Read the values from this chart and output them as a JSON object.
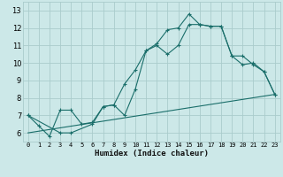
{
  "xlabel": "Humidex (Indice chaleur)",
  "bg_color": "#cce8e8",
  "grid_color": "#aacccc",
  "line_color": "#1a6e6a",
  "xlim": [
    -0.5,
    23.5
  ],
  "ylim": [
    5.5,
    13.5
  ],
  "xticks": [
    0,
    1,
    2,
    3,
    4,
    5,
    6,
    7,
    8,
    9,
    10,
    11,
    12,
    13,
    14,
    15,
    16,
    17,
    18,
    19,
    20,
    21,
    22,
    23
  ],
  "yticks": [
    6,
    7,
    8,
    9,
    10,
    11,
    12,
    13
  ],
  "line1_x": [
    0,
    1,
    2,
    3,
    4,
    5,
    6,
    7,
    8,
    9,
    10,
    11,
    12,
    13,
    14,
    15,
    16,
    17,
    18,
    19,
    20,
    21,
    22,
    23
  ],
  "line1_y": [
    7.0,
    6.4,
    5.8,
    7.3,
    7.3,
    6.5,
    6.6,
    7.5,
    7.6,
    8.8,
    9.6,
    10.7,
    11.1,
    11.9,
    12.0,
    12.8,
    12.2,
    12.1,
    12.1,
    10.4,
    9.9,
    10.0,
    9.5,
    8.2
  ],
  "line2_x": [
    0,
    3,
    4,
    6,
    7,
    8,
    9,
    10,
    11,
    12,
    13,
    14,
    15,
    16,
    17,
    18,
    19,
    20,
    21,
    22,
    23
  ],
  "line2_y": [
    7.0,
    6.0,
    6.0,
    6.5,
    7.5,
    7.6,
    7.0,
    8.5,
    10.7,
    11.0,
    10.5,
    11.0,
    12.2,
    12.2,
    12.1,
    12.1,
    10.4,
    10.4,
    9.9,
    9.5,
    8.2
  ],
  "line3_x": [
    0,
    23
  ],
  "line3_y": [
    6.0,
    8.2
  ]
}
